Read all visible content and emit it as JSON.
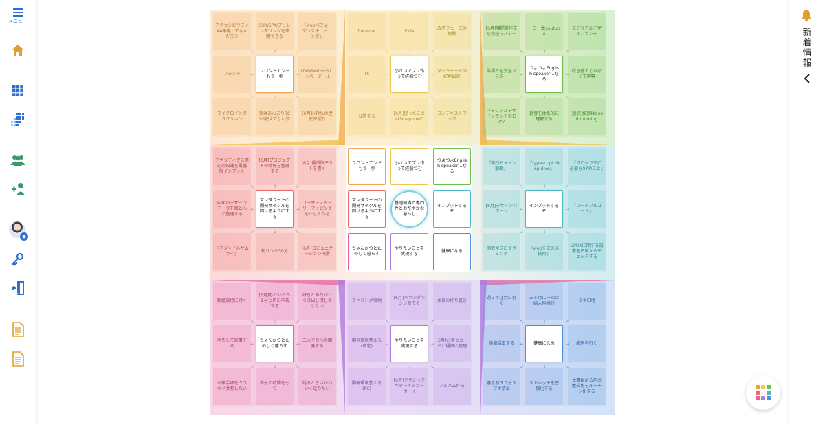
{
  "sidebar": {
    "menu_label": "メニュー",
    "icons": [
      "home-icon",
      "grid-icon",
      "grid-fade-icon",
      "group-icon",
      "add-user-icon",
      "key-icon",
      "logout-icon",
      "document-icon",
      "document-icon-2"
    ],
    "accent": "#e0a030",
    "blue": "#2e6fd0"
  },
  "rightbar": {
    "label": "新着情報"
  },
  "board": {
    "center_goal": "基礎知識と専門性とおだやかな暮らし",
    "blocks": [
      {
        "theme": "orange",
        "color": "#f2a550",
        "cells": [
          "アクセシビリティAA準拠ってなんだろう",
          "SSR/SPA/プリレンダリングを説明できる",
          "『webパフォーマンスチューニング』",
          "フォント",
          "フロントエンドもう一歩",
          "chromeのデベロッパーツール",
          "マイクロインタラクション",
          "実はあんまりSCSS使えてない説",
          "[6月]HTMLの歴史深掘り"
        ]
      },
      {
        "theme": "yellow",
        "color": "#f3c64a",
        "cells": [
          "firestore",
          "PWA",
          "改善フェーズの経験",
          "TS",
          "小さいアプリ作って経験つむ",
          "ダークモードの配色設計",
          "公開する",
          "[6月]思ったことはScrapboxに",
          "コンテキストマップ"
        ]
      },
      {
        "theme": "green",
        "color": "#6cc24a",
        "cells": [
          "[6月]獲間英作文を完全マスター",
          "一日一本youtube",
          "マテリアルデザインランチ",
          "英語耳を完全マスター",
          "つよつよEnglish speakerになる",
          "吹き替えじゃなくて字幕",
          "マテリアルデザインランチのログ?",
          "発音を体系的に理解する",
          "[継続]挨拶はgood morning"
        ]
      },
      {
        "theme": "red",
        "color": "#ee6a6a",
        "cells": [
          "アナリティクス周辺の知識を最低限インプット",
          "[6月]プロジェクトの情報を整理する",
          "[6月]最低限テストを書く",
          "webのデザインデータを紐とんと整理する",
          "マンダラートの開発サイクルを回せるようにする",
          "ユーザーストーリーマッピングを正しく作る",
          "『アジャイルサムライ』",
          "朝リント30分",
          "[6月]コミュニケーション円滑"
        ]
      },
      {
        "theme": "center",
        "color": "#ffffff",
        "cells": [
          "フロントエンドもう一歩",
          "小さいアプリ作って経験つむ",
          "つよつよEnglish speakerになる",
          "マンダラートの開発サイクルを回せるようにする",
          "基礎知識と専門性とおだやかな暮らし",
          "インプットするぞ",
          "ちゃんかつとたのしく暮らす",
          "やりたいことを実現する",
          "健康になる"
        ]
      },
      {
        "theme": "teal",
        "color": "#4bb8c9",
        "cells": [
          "『実践ドメイン駆動』",
          "『typescript deep dive』",
          "『プログラマに必要な97のこと』",
          "[6月]デザインパターン",
          "インプットするぞ",
          "『リーダブルコード』",
          "関数型プログラミング",
          "『webを支える技術』",
          "UI/UXに関する記事を日頃からチェックする"
        ]
      },
      {
        "theme": "pink",
        "color": "#e8609a",
        "cells": [
          "新婚旅行に行く",
          "[6月]むかいたら３分以内に申告する",
          "好きとありがとうは出し惜しみしない",
          "率先して家事する",
          "ちゃんかつとたのしく暮らす",
          "二人でなんか開発する",
          "お薬手帳をクラウド共有したい",
          "自分の時間をもつ",
          "話るときはかわいく話りたい"
        ]
      },
      {
        "theme": "purple",
        "color": "#b07ce0",
        "cells": [
          "ラベリング収納",
          "[6月]ペランダでシソ育てる",
          "本気の作り置き",
          "開発環境整える(自宅)",
          "やりたいことを実現する",
          "[5月]お金とカードと通帳の整理",
          "開発環境整える(PC)",
          "[6月]クラシックギターでダニーボーイ",
          "アルバム作る"
        ]
      },
      {
        "theme": "blue",
        "color": "#4f8fe0",
        "cells": [
          "週２で注力に行く",
          "三ヶ月に一回は婦人科検診",
          "５キロ増",
          "腰痛矯正する",
          "健康になる",
          "歯医者行く",
          "寝る前３０分スマホ禁止",
          "ストレッチを習慣化する",
          "仕事始める前の儀式化をルーチン化する"
        ]
      }
    ]
  },
  "fab": {
    "colors": [
      "#f0a030",
      "#f3c64a",
      "#6cc24a",
      "#ee6a6a",
      "#ffffff",
      "#4bb8c9",
      "#e8609a",
      "#b07ce0",
      "#4f8fe0"
    ]
  }
}
